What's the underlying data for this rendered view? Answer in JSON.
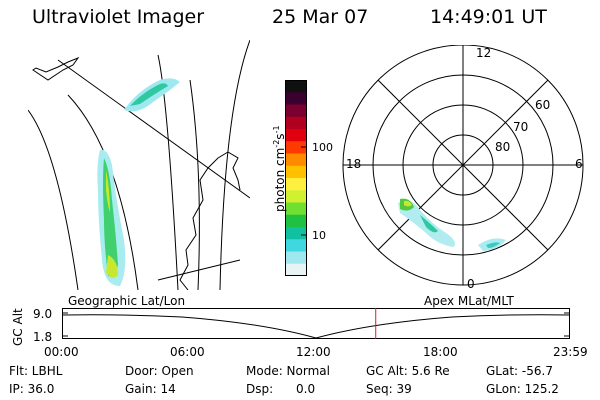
{
  "header": {
    "instrument": "Ultraviolet Imager",
    "date": "25 Mar 07",
    "time": "14:49:01 UT"
  },
  "geographic_panel": {
    "label": "Geographic Lat/Lon"
  },
  "polar_panel": {
    "label": "Apex MLat/MLT",
    "lat_labels": [
      "80",
      "70",
      "60"
    ],
    "mlt_labels": {
      "top": "12",
      "left": "18",
      "right": "6",
      "bottom": "0"
    }
  },
  "colorbar": {
    "unit_label": "photon cm",
    "unit_sup1": "-2",
    "unit_mid": "s",
    "unit_sup2": "-1",
    "ticks": [
      "100",
      "10"
    ],
    "colors": [
      "#101010",
      "#3a0030",
      "#7a0030",
      "#b00020",
      "#e00010",
      "#ff3a00",
      "#ff8a00",
      "#ffc000",
      "#fff040",
      "#d0f030",
      "#70e030",
      "#20c040",
      "#10c0a0",
      "#40d8e0",
      "#a0e8f0",
      "#e8f4f4"
    ]
  },
  "timeline": {
    "y_axis_label": "GC Alt",
    "y_ticks": [
      "9.0",
      "1.8"
    ],
    "x_ticks": [
      "00:00",
      "06:00",
      "12:00",
      "18:00",
      "23:59"
    ],
    "current_time_fraction": 0.6176,
    "marker_color": "#d02020"
  },
  "status": {
    "row1": {
      "filter": "Flt: LBHL",
      "door": "Door: Open",
      "mode": "Mode: Normal",
      "gc_alt": "GC Alt: 5.6 Re",
      "glat": "GLat: -56.7"
    },
    "row2": {
      "ip": "IP: 36.0",
      "gain": "Gain: 14",
      "dsp_label": "Dsp:",
      "dsp_value": "0.0",
      "seq": "Seq: 39",
      "glon": "GLon: 125.2"
    }
  }
}
